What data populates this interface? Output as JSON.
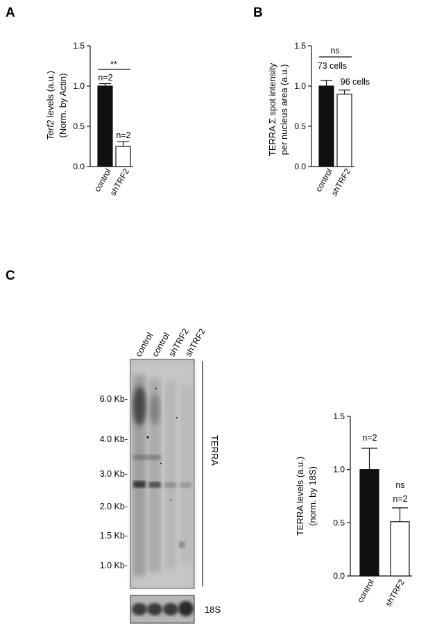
{
  "panels": {
    "a": "A",
    "b": "B",
    "c": "C"
  },
  "chart_data": [
    {
      "type": "bar",
      "categories": [
        "control",
        "shTRF2"
      ],
      "values": [
        1.0,
        0.25
      ],
      "errors": [
        0.03,
        0.06
      ],
      "fills": [
        "#111111",
        "#ffffff"
      ],
      "ylabel_italic": "Terf2",
      "ylabel_rest": " levels (a.u.)",
      "ylabel_line2": "(Norm. by Actin)",
      "ylim": [
        0,
        1.5
      ],
      "yticks": [
        "0.0",
        "0.5",
        "1.0",
        "1.5"
      ],
      "ytick_values": [
        0,
        0.5,
        1.0,
        1.5
      ],
      "bar_labels": [
        "n=2",
        "n=2"
      ],
      "significance": "**"
    },
    {
      "type": "bar",
      "categories": [
        "control",
        "shTRF2"
      ],
      "values": [
        1.0,
        0.9
      ],
      "errors": [
        0.07,
        0.05
      ],
      "fills": [
        "#111111",
        "#ffffff"
      ],
      "ylabel_line1": "TERRA  Σ spot intensity",
      "ylabel_line2": "per nucleus area (a.u.)",
      "ylim": [
        0,
        1.5
      ],
      "yticks": [
        "0.0",
        "0.5",
        "1.0",
        "1.5"
      ],
      "ytick_values": [
        0,
        0.5,
        1.0,
        1.5
      ],
      "bar_labels": [
        "73 cells",
        "96 cells"
      ],
      "significance": "ns"
    },
    {
      "type": "bar",
      "categories": [
        "control",
        "shTRF2"
      ],
      "values": [
        1.0,
        0.51
      ],
      "errors": [
        0.2,
        0.13
      ],
      "fills": [
        "#111111",
        "#ffffff"
      ],
      "ylabel_line1": "TERRA levels  (a.u.)",
      "ylabel_line2": "(norm. by 18S)",
      "ylim": [
        0,
        1.5
      ],
      "yticks": [
        "0.0",
        "0.5",
        "1.0",
        "1.5"
      ],
      "ytick_values": [
        0,
        0.5,
        1.0,
        1.5
      ],
      "bar_labels": [
        "n=2",
        "n=2"
      ],
      "bar_labels_extra": [
        "",
        "ns"
      ]
    }
  ],
  "blot": {
    "lanes": [
      "control",
      "control",
      "shTRF2",
      "shTRF2"
    ],
    "markers": [
      "6.0 Kb-",
      "4.0 Kb-",
      "3.0 Kb-",
      "2.0 Kb-",
      "1.5 Kb-",
      "1.0 Kb-"
    ],
    "probe": "TERRA",
    "loading": "18S"
  }
}
